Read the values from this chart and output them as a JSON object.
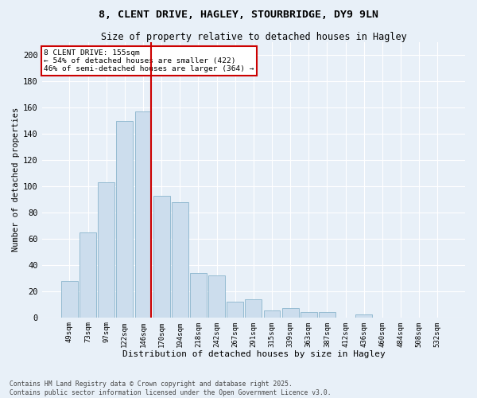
{
  "title_line1": "8, CLENT DRIVE, HAGLEY, STOURBRIDGE, DY9 9LN",
  "title_line2": "Size of property relative to detached houses in Hagley",
  "xlabel": "Distribution of detached houses by size in Hagley",
  "ylabel": "Number of detached properties",
  "bar_color": "#ccdded",
  "bar_edge_color": "#8ab4cc",
  "bg_color": "#e8f0f8",
  "grid_color": "#ffffff",
  "categories": [
    "49sqm",
    "73sqm",
    "97sqm",
    "122sqm",
    "146sqm",
    "170sqm",
    "194sqm",
    "218sqm",
    "242sqm",
    "267sqm",
    "291sqm",
    "315sqm",
    "339sqm",
    "363sqm",
    "387sqm",
    "412sqm",
    "436sqm",
    "460sqm",
    "484sqm",
    "508sqm",
    "532sqm"
  ],
  "values": [
    28,
    65,
    103,
    150,
    157,
    93,
    88,
    34,
    32,
    12,
    14,
    5,
    7,
    4,
    4,
    0,
    2,
    0,
    0,
    0,
    0
  ],
  "ylim": [
    0,
    210
  ],
  "yticks": [
    0,
    20,
    40,
    60,
    80,
    100,
    120,
    140,
    160,
    180,
    200
  ],
  "annotation_line1": "8 CLENT DRIVE: 155sqm",
  "annotation_line2": "← 54% of detached houses are smaller (422)",
  "annotation_line3": "46% of semi-detached houses are larger (364) →",
  "annotation_box_color": "#ffffff",
  "annotation_box_edge": "#cc0000",
  "vline_color": "#cc0000",
  "footer": "Contains HM Land Registry data © Crown copyright and database right 2025.\nContains public sector information licensed under the Open Government Licence v3.0."
}
